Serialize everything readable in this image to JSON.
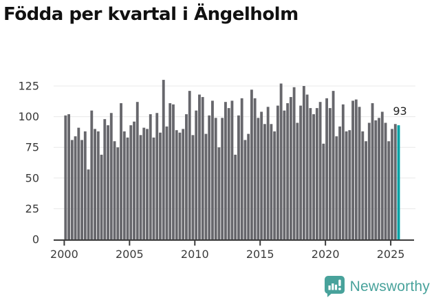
{
  "title": "Födda per kvartal i Ängelholm",
  "chart_data": {
    "type": "bar",
    "title": "Födda per kvartal i Ängelholm",
    "x_unit": "quarter",
    "start_quarter": "2000 Q1",
    "end_quarter": "2025 Q3",
    "values": [
      101,
      102,
      81,
      84,
      91,
      81,
      88,
      57,
      105,
      90,
      88,
      69,
      98,
      93,
      103,
      80,
      75,
      111,
      88,
      83,
      93,
      96,
      112,
      85,
      91,
      90,
      102,
      83,
      103,
      87,
      130,
      92,
      111,
      110,
      89,
      87,
      90,
      102,
      121,
      85,
      105,
      118,
      116,
      86,
      101,
      113,
      99,
      75,
      99,
      112,
      107,
      113,
      69,
      101,
      115,
      81,
      86,
      122,
      115,
      99,
      104,
      94,
      108,
      94,
      88,
      109,
      127,
      105,
      111,
      116,
      124,
      95,
      109,
      125,
      118,
      107,
      102,
      107,
      112,
      78,
      115,
      107,
      121,
      84,
      92,
      110,
      88,
      89,
      113,
      114,
      108,
      88,
      80,
      95,
      111,
      97,
      99,
      104,
      95,
      80,
      90,
      94,
      93
    ],
    "highlight": {
      "index": 102,
      "quarter": "2025 Q3",
      "value": 93,
      "label": "93"
    },
    "xticks": [
      2000,
      2005,
      2010,
      2015,
      2020,
      2025
    ],
    "yticks": [
      0,
      25,
      50,
      75,
      100,
      125
    ],
    "ylim": [
      0,
      135
    ],
    "grid": true,
    "legend": "none",
    "bar_color": "#67676c",
    "highlight_color": "#00a3a6",
    "axis_color": "#3b3b3b",
    "gridline_color": "#e8e8e8"
  },
  "footer": {
    "brand": "Newsworthy",
    "brand_color": "#48a29b",
    "logo_icon": "speech-bubble-bar-chart-icon"
  }
}
